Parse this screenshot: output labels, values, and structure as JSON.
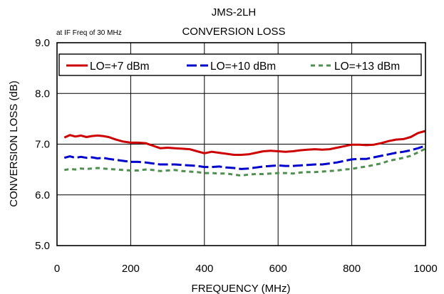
{
  "chart_data": {
    "type": "line",
    "title": "JMS-2LH",
    "subtitle": "CONVERSION LOSS",
    "annotation": "at IF Freq of 30 MHz",
    "xlabel": "FREQUENCY (MHz)",
    "ylabel": "CONVERSION LOSS (dB)",
    "xlim": [
      0,
      1000
    ],
    "ylim": [
      5.0,
      9.0
    ],
    "x_ticks": [
      "0",
      "200",
      "400",
      "600",
      "800",
      "1000"
    ],
    "y_ticks": [
      "5.0",
      "6.0",
      "7.0",
      "8.0",
      "9.0"
    ],
    "grid": true,
    "legend_position": "top",
    "series": [
      {
        "name": "LO=+7 dBm",
        "color": "#cc0000",
        "style": "solid",
        "x": [
          20,
          35,
          50,
          65,
          80,
          95,
          110,
          125,
          140,
          160,
          180,
          200,
          220,
          240,
          260,
          280,
          300,
          320,
          340,
          360,
          380,
          400,
          420,
          440,
          460,
          480,
          500,
          520,
          540,
          560,
          580,
          600,
          620,
          640,
          660,
          680,
          700,
          720,
          740,
          760,
          780,
          800,
          820,
          840,
          860,
          880,
          900,
          920,
          940,
          960,
          980,
          1000
        ],
        "y": [
          7.13,
          7.18,
          7.15,
          7.17,
          7.14,
          7.16,
          7.17,
          7.16,
          7.14,
          7.09,
          7.05,
          7.03,
          7.03,
          7.02,
          6.97,
          6.92,
          6.93,
          6.92,
          6.91,
          6.9,
          6.86,
          6.82,
          6.85,
          6.83,
          6.81,
          6.79,
          6.79,
          6.8,
          6.83,
          6.86,
          6.87,
          6.86,
          6.85,
          6.86,
          6.88,
          6.89,
          6.9,
          6.89,
          6.9,
          6.93,
          6.96,
          6.99,
          6.99,
          6.98,
          6.99,
          7.02,
          7.06,
          7.09,
          7.1,
          7.14,
          7.22,
          7.26
        ]
      },
      {
        "name": "LO=+10 dBm",
        "color": "#0000cc",
        "style": "dashed",
        "x": [
          20,
          35,
          50,
          65,
          80,
          95,
          110,
          125,
          140,
          160,
          180,
          200,
          220,
          240,
          260,
          280,
          300,
          320,
          340,
          360,
          380,
          400,
          420,
          440,
          460,
          480,
          500,
          520,
          540,
          560,
          580,
          600,
          620,
          640,
          660,
          680,
          700,
          720,
          740,
          760,
          780,
          800,
          820,
          840,
          860,
          880,
          900,
          920,
          940,
          960,
          980,
          1000
        ],
        "y": [
          6.73,
          6.76,
          6.73,
          6.75,
          6.73,
          6.74,
          6.72,
          6.73,
          6.71,
          6.69,
          6.67,
          6.65,
          6.65,
          6.64,
          6.62,
          6.6,
          6.6,
          6.6,
          6.59,
          6.58,
          6.57,
          6.55,
          6.55,
          6.56,
          6.54,
          6.53,
          6.51,
          6.52,
          6.54,
          6.56,
          6.57,
          6.58,
          6.57,
          6.57,
          6.58,
          6.59,
          6.6,
          6.6,
          6.62,
          6.64,
          6.67,
          6.7,
          6.71,
          6.71,
          6.74,
          6.77,
          6.8,
          6.83,
          6.85,
          6.88,
          6.92,
          6.97
        ]
      },
      {
        "name": "LO=+13 dBm",
        "color": "#4f8f4f",
        "style": "dotted",
        "x": [
          20,
          35,
          50,
          65,
          80,
          95,
          110,
          125,
          140,
          160,
          180,
          200,
          220,
          240,
          260,
          280,
          300,
          320,
          340,
          360,
          380,
          400,
          420,
          440,
          460,
          480,
          500,
          520,
          540,
          560,
          580,
          600,
          620,
          640,
          660,
          680,
          700,
          720,
          740,
          760,
          780,
          800,
          820,
          840,
          860,
          880,
          900,
          920,
          940,
          960,
          980,
          1000
        ],
        "y": [
          6.49,
          6.51,
          6.5,
          6.52,
          6.51,
          6.52,
          6.53,
          6.52,
          6.51,
          6.5,
          6.49,
          6.48,
          6.48,
          6.5,
          6.49,
          6.47,
          6.48,
          6.49,
          6.47,
          6.46,
          6.45,
          6.43,
          6.43,
          6.42,
          6.42,
          6.4,
          6.38,
          6.4,
          6.41,
          6.41,
          6.42,
          6.43,
          6.43,
          6.42,
          6.44,
          6.45,
          6.45,
          6.46,
          6.47,
          6.48,
          6.5,
          6.51,
          6.54,
          6.56,
          6.59,
          6.62,
          6.67,
          6.7,
          6.73,
          6.77,
          6.84,
          6.91
        ]
      }
    ]
  }
}
